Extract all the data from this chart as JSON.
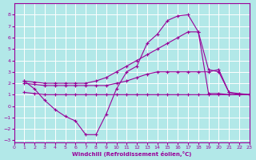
{
  "background_color": "#b2e8e8",
  "grid_color": "#ffffff",
  "line_color": "#990099",
  "xlim": [
    0,
    23
  ],
  "ylim": [
    -3.2,
    9.0
  ],
  "xticks": [
    0,
    1,
    2,
    3,
    4,
    5,
    6,
    7,
    8,
    9,
    10,
    11,
    12,
    13,
    14,
    15,
    16,
    17,
    18,
    19,
    20,
    21,
    22,
    23
  ],
  "yticks": [
    -3,
    -2,
    -1,
    0,
    1,
    2,
    3,
    4,
    5,
    6,
    7,
    8
  ],
  "xlabel": "Windchill (Refroidissement éolien,°C)",
  "line1_x": [
    1,
    2,
    3,
    4,
    5,
    6,
    7,
    8,
    9,
    10,
    11,
    12,
    13,
    14,
    15,
    16,
    17,
    18,
    19,
    20,
    21,
    22,
    23
  ],
  "line1_y": [
    2.2,
    1.5,
    0.5,
    -0.3,
    -0.9,
    -1.3,
    -2.5,
    -2.5,
    -0.7,
    1.5,
    3.0,
    3.5,
    5.5,
    6.3,
    7.5,
    7.9,
    8.0,
    6.5,
    3.2,
    3.0,
    1.2,
    1.0,
    1.0
  ],
  "line2_x": [
    1,
    2,
    3,
    4,
    5,
    6,
    7,
    8,
    9,
    10,
    11,
    12,
    13,
    14,
    15,
    16,
    17,
    18,
    19,
    20,
    21,
    22,
    23
  ],
  "line2_y": [
    2.2,
    2.1,
    2.0,
    2.0,
    2.0,
    2.0,
    2.0,
    2.2,
    2.5,
    3.0,
    3.5,
    4.0,
    4.5,
    5.0,
    5.5,
    6.0,
    6.5,
    6.5,
    1.1,
    1.1,
    1.0,
    1.0,
    1.0
  ],
  "line3_x": [
    1,
    2,
    3,
    4,
    5,
    6,
    7,
    8,
    9,
    10,
    11,
    12,
    13,
    14,
    15,
    16,
    17,
    18,
    19,
    20,
    21,
    22,
    23
  ],
  "line3_y": [
    2.0,
    1.9,
    1.8,
    1.8,
    1.8,
    1.8,
    1.8,
    1.8,
    1.8,
    2.0,
    2.2,
    2.5,
    2.8,
    3.0,
    3.0,
    3.0,
    3.0,
    3.0,
    3.0,
    3.2,
    1.2,
    1.1,
    1.0
  ],
  "line4_x": [
    1,
    2,
    3,
    4,
    5,
    6,
    7,
    8,
    9,
    10,
    11,
    12,
    13,
    14,
    15,
    16,
    17,
    18,
    19,
    20,
    21,
    22,
    23
  ],
  "line4_y": [
    1.2,
    1.1,
    1.0,
    1.0,
    1.0,
    1.0,
    1.0,
    1.0,
    1.0,
    1.0,
    1.0,
    1.0,
    1.0,
    1.0,
    1.0,
    1.0,
    1.0,
    1.0,
    1.0,
    1.0,
    1.0,
    1.0,
    1.0
  ]
}
